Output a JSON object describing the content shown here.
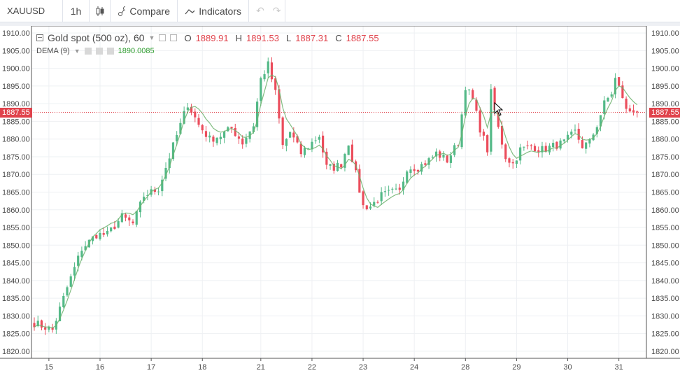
{
  "toolbar": {
    "symbol": "XAUUSD",
    "interval": "1h",
    "chart_type_icon": "candles-icon",
    "compare_label": "Compare",
    "indicators_label": "Indicators",
    "undo_icon": "undo-icon",
    "redo_icon": "redo-icon"
  },
  "legend": {
    "title": "Gold spot (500 oz), 60",
    "open_label": "O",
    "open": "1889.91",
    "high_label": "H",
    "high": "1891.53",
    "low_label": "L",
    "low": "1887.31",
    "close_label": "C",
    "close": "1887.55"
  },
  "indicator": {
    "name": "DEMA (9)",
    "value": "1890.0085"
  },
  "last_price": "1887.55",
  "colors": {
    "up": "#53b987",
    "down": "#eb4d5c",
    "dema": "#6cb26c",
    "last": "#e0424b"
  },
  "chart_data": {
    "type": "candlestick",
    "ylim": [
      1818,
      1912
    ],
    "y_ticks": [
      "1910.00",
      "1905.00",
      "1900.00",
      "1895.00",
      "1890.00",
      "1885.00",
      "1880.00",
      "1875.00",
      "1870.00",
      "1865.00",
      "1860.00",
      "1855.00",
      "1850.00",
      "1845.00",
      "1840.00",
      "1835.00",
      "1830.00",
      "1825.00",
      "1820.00"
    ],
    "x_ticks": [
      "15",
      "16",
      "17",
      "18",
      "21",
      "22",
      "23",
      "24",
      "28",
      "29",
      "30",
      "31"
    ],
    "x_tick_index": [
      4,
      18,
      32,
      46,
      62,
      76,
      90,
      104,
      118,
      132,
      146,
      160
    ],
    "bars": 166,
    "anchors": [
      [
        0,
        1828
      ],
      [
        5,
        1826
      ],
      [
        9,
        1838
      ],
      [
        13,
        1849
      ],
      [
        17,
        1853
      ],
      [
        20,
        1853
      ],
      [
        24,
        1858
      ],
      [
        27,
        1856
      ],
      [
        30,
        1864
      ],
      [
        34,
        1866
      ],
      [
        38,
        1878
      ],
      [
        42,
        1890
      ],
      [
        45,
        1884
      ],
      [
        48,
        1880
      ],
      [
        51,
        1881
      ],
      [
        54,
        1883
      ],
      [
        57,
        1879
      ],
      [
        60,
        1884
      ],
      [
        62,
        1897
      ],
      [
        64,
        1901
      ],
      [
        66,
        1893
      ],
      [
        68,
        1878
      ],
      [
        70,
        1882
      ],
      [
        73,
        1876
      ],
      [
        76,
        1879
      ],
      [
        78,
        1881
      ],
      [
        80,
        1872
      ],
      [
        82,
        1872
      ],
      [
        84,
        1873
      ],
      [
        86,
        1879
      ],
      [
        88,
        1870
      ],
      [
        90,
        1861
      ],
      [
        92,
        1861
      ],
      [
        95,
        1864
      ],
      [
        98,
        1865
      ],
      [
        100,
        1865
      ],
      [
        102,
        1872
      ],
      [
        105,
        1872
      ],
      [
        108,
        1874
      ],
      [
        110,
        1876
      ],
      [
        113,
        1874
      ],
      [
        116,
        1879
      ],
      [
        118,
        1895
      ],
      [
        120,
        1891
      ],
      [
        122,
        1883
      ],
      [
        124,
        1877
      ],
      [
        125,
        1893
      ],
      [
        127,
        1883
      ],
      [
        129,
        1875
      ],
      [
        131,
        1873
      ],
      [
        133,
        1877
      ],
      [
        136,
        1878
      ],
      [
        139,
        1877
      ],
      [
        142,
        1878
      ],
      [
        145,
        1879
      ],
      [
        148,
        1882
      ],
      [
        150,
        1878
      ],
      [
        152,
        1879
      ],
      [
        154,
        1884
      ],
      [
        156,
        1890
      ],
      [
        158,
        1893
      ],
      [
        159,
        1897
      ],
      [
        161,
        1892
      ],
      [
        162,
        1888
      ],
      [
        163,
        1888
      ]
    ],
    "series": [
      {
        "name": "DEMA (9)",
        "type": "line",
        "derived_from": "close"
      }
    ]
  }
}
